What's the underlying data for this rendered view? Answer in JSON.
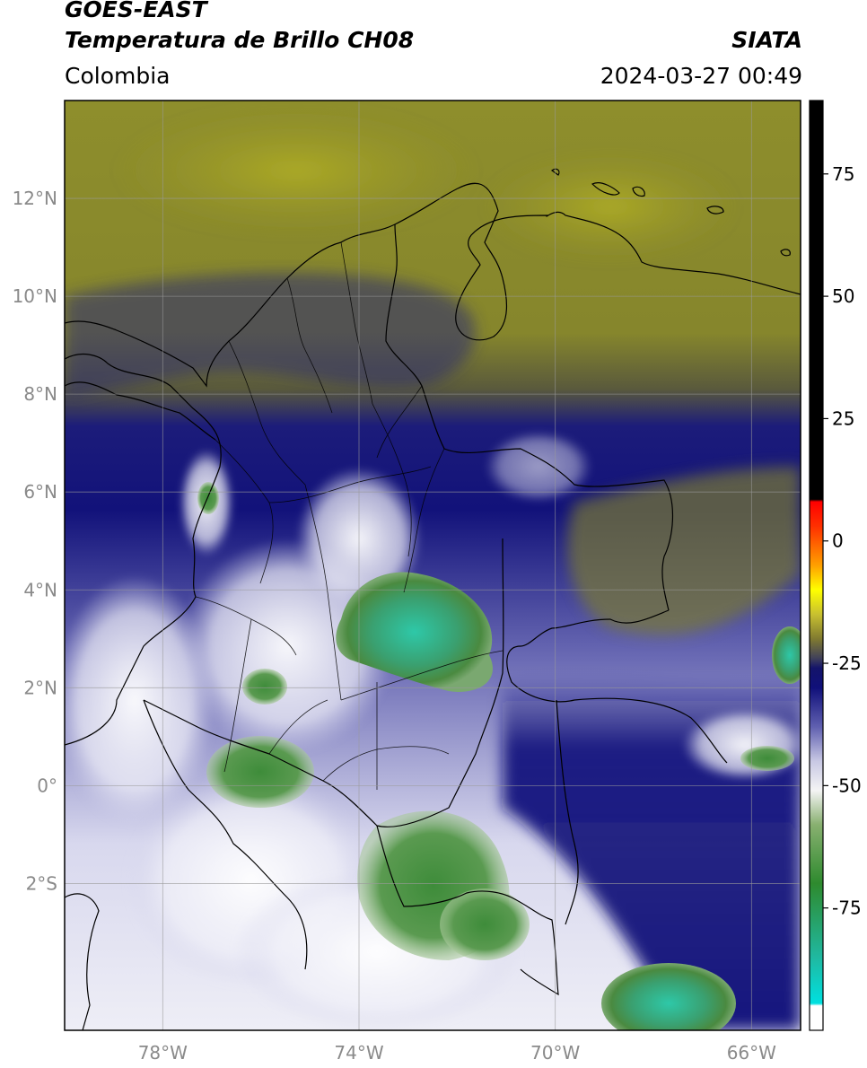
{
  "header": {
    "satellite": "GOES-EAST",
    "product": "Temperatura de Brillo CH08",
    "organization": "SIATA",
    "region": "Colombia",
    "timestamp": "2024-03-27 00:49"
  },
  "map": {
    "lon_range": [
      -80,
      -65
    ],
    "lat_range": [
      -5,
      14
    ],
    "lat_ticks": [
      {
        "value": 12,
        "label": "12°N"
      },
      {
        "value": 10,
        "label": "10°N"
      },
      {
        "value": 8,
        "label": "8°N"
      },
      {
        "value": 6,
        "label": "6°N"
      },
      {
        "value": 4,
        "label": "4°N"
      },
      {
        "value": 2,
        "label": "2°N"
      },
      {
        "value": 0,
        "label": "0°"
      },
      {
        "value": -2,
        "label": "2°S"
      }
    ],
    "lon_ticks": [
      {
        "value": -78,
        "label": "78°W"
      },
      {
        "value": -74,
        "label": "74°W"
      },
      {
        "value": -70,
        "label": "70°W"
      },
      {
        "value": -66,
        "label": "66°W"
      }
    ],
    "grid": true
  },
  "colorbar": {
    "range": [
      -100,
      90
    ],
    "ticks": [
      {
        "value": 75,
        "label": "75"
      },
      {
        "value": 50,
        "label": "50"
      },
      {
        "value": 25,
        "label": "25"
      },
      {
        "value": 0,
        "label": "0"
      },
      {
        "value": -25,
        "label": "-25"
      },
      {
        "value": -50,
        "label": "-50"
      },
      {
        "value": -75,
        "label": "-75"
      }
    ],
    "stops": [
      {
        "value": -100,
        "color": "#ffffff"
      },
      {
        "value": -95,
        "color": "#ffffff"
      },
      {
        "value": -94.5,
        "color": "#00e0e0"
      },
      {
        "value": -85,
        "color": "#20b8a0"
      },
      {
        "value": -70,
        "color": "#2e8a2e"
      },
      {
        "value": -58,
        "color": "#88b070"
      },
      {
        "value": -51,
        "color": "#f4f4f4"
      },
      {
        "value": -45,
        "color": "#c8c8e4"
      },
      {
        "value": -38,
        "color": "#6060b0"
      },
      {
        "value": -30,
        "color": "#10107a"
      },
      {
        "value": -26,
        "color": "#14146a"
      },
      {
        "value": -24,
        "color": "#40405a"
      },
      {
        "value": -20,
        "color": "#807a30"
      },
      {
        "value": -15,
        "color": "#c8c030"
      },
      {
        "value": -10,
        "color": "#ffff00"
      },
      {
        "value": -5,
        "color": "#ffa000"
      },
      {
        "value": 3,
        "color": "#ff3000"
      },
      {
        "value": 8,
        "color": "#ff0000"
      },
      {
        "value": 8.5,
        "color": "#000000"
      },
      {
        "value": 90,
        "color": "#000000"
      }
    ]
  },
  "colors": {
    "cold_top_green": "#2e8a2e",
    "cold_top_cyan": "#2ec8a8",
    "deep_blue": "#12127a",
    "dry_olive": "#8c8c2a",
    "outline": "#000000"
  }
}
